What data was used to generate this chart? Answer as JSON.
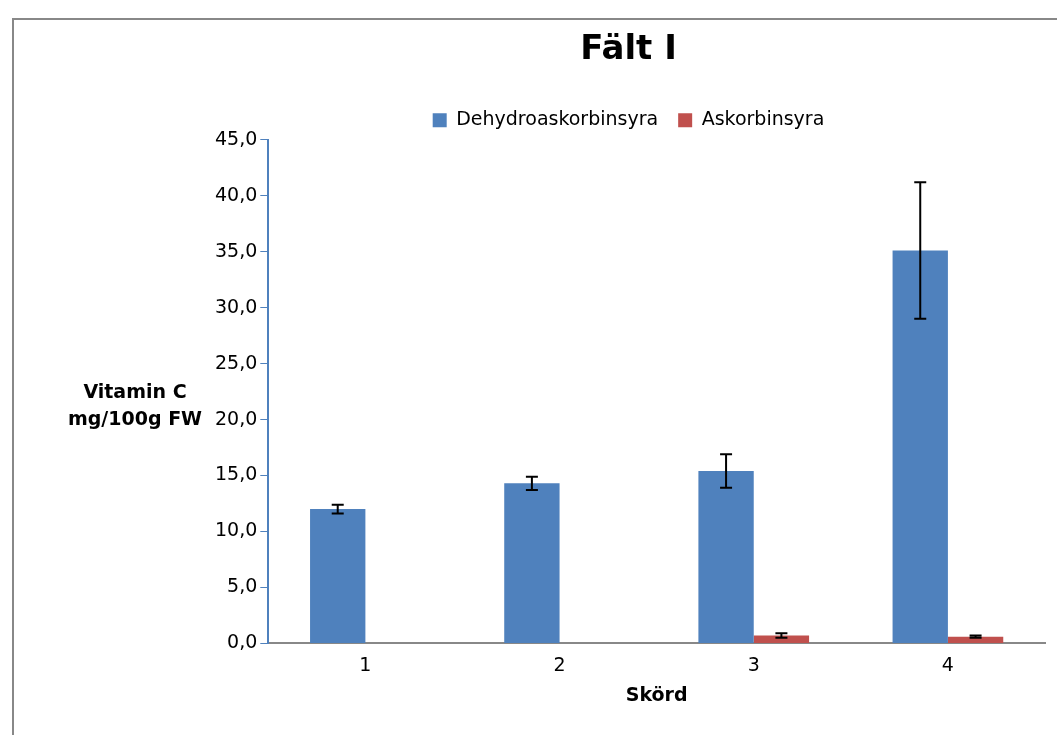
{
  "chart_data": {
    "type": "bar",
    "title": "Fält I",
    "xlabel": "Skörd",
    "ylabel": "Vitamin C mg/100g FW",
    "categories": [
      "1",
      "2",
      "3",
      "4"
    ],
    "series": [
      {
        "name": "Dehydroaskorbinsyra",
        "color": "#4f81bd",
        "values": [
          12.0,
          14.3,
          15.4,
          35.1
        ],
        "errors": [
          0.4,
          0.6,
          1.5,
          6.1
        ]
      },
      {
        "name": "Askorbinsyra",
        "color": "#c0504d",
        "values": [
          0,
          0,
          0.7,
          0.6
        ],
        "errors": [
          null,
          null,
          0.2,
          0.1
        ]
      }
    ],
    "ylim": [
      0,
      45
    ],
    "yticks": [
      {
        "value": 0,
        "label": "0,0"
      },
      {
        "value": 5,
        "label": "5,0"
      },
      {
        "value": 10,
        "label": "10,0"
      },
      {
        "value": 15,
        "label": "15,0"
      },
      {
        "value": 20,
        "label": "20,0"
      },
      {
        "value": 25,
        "label": "25,0"
      },
      {
        "value": 30,
        "label": "30,0"
      },
      {
        "value": 35,
        "label": "35,0"
      },
      {
        "value": 40,
        "label": "40,0"
      },
      {
        "value": 45,
        "label": "45,0"
      }
    ],
    "grid": false,
    "legend": "top"
  }
}
